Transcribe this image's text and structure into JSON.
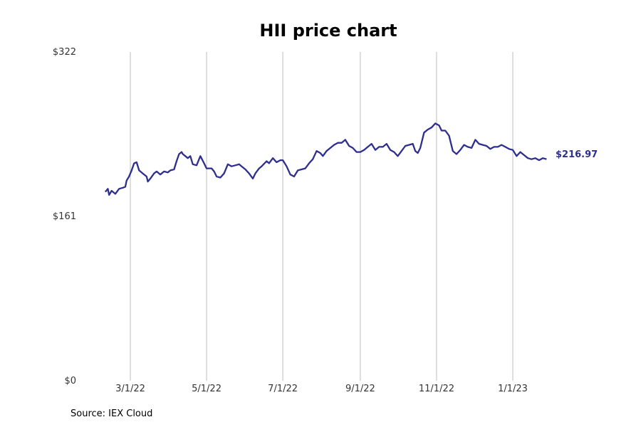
{
  "source_label": "Source: IEX Cloud",
  "colors": {
    "line": "#2e2e8f",
    "grid": "#bdbdbd"
  },
  "chart_data": {
    "type": "line",
    "title": "HII price chart",
    "xlabel": "",
    "ylabel": "",
    "ylim": [
      0,
      322
    ],
    "y_ticks": [
      {
        "value": 0,
        "label": "$0"
      },
      {
        "value": 161,
        "label": "$161"
      },
      {
        "value": 322,
        "label": "$322"
      }
    ],
    "x_ticks": [
      {
        "date": "2022-03-01",
        "label": "3/1/22"
      },
      {
        "date": "2022-05-01",
        "label": "5/1/22"
      },
      {
        "date": "2022-07-01",
        "label": "7/1/22"
      },
      {
        "date": "2022-09-01",
        "label": "9/1/22"
      },
      {
        "date": "2022-11-01",
        "label": "11/1/22"
      },
      {
        "date": "2023-01-01",
        "label": "1/1/23"
      }
    ],
    "grid": "vertical",
    "last_value_label": "$216.97",
    "series": [
      {
        "values": [
          [
            "2022-02-09",
            185
          ],
          [
            "2022-02-11",
            188
          ],
          [
            "2022-02-12",
            182
          ],
          [
            "2022-02-14",
            186
          ],
          [
            "2022-02-17",
            183
          ],
          [
            "2022-02-20",
            188
          ],
          [
            "2022-02-23",
            189
          ],
          [
            "2022-02-25",
            190
          ],
          [
            "2022-02-26",
            196
          ],
          [
            "2022-02-28",
            200
          ],
          [
            "2022-03-02",
            206
          ],
          [
            "2022-03-04",
            213
          ],
          [
            "2022-03-06",
            214
          ],
          [
            "2022-03-08",
            206
          ],
          [
            "2022-03-11",
            203
          ],
          [
            "2022-03-14",
            200
          ],
          [
            "2022-03-15",
            195
          ],
          [
            "2022-03-17",
            198
          ],
          [
            "2022-03-20",
            203
          ],
          [
            "2022-03-22",
            205
          ],
          [
            "2022-03-25",
            202
          ],
          [
            "2022-03-28",
            205
          ],
          [
            "2022-03-31",
            204
          ],
          [
            "2022-04-02",
            206
          ],
          [
            "2022-04-05",
            207
          ],
          [
            "2022-04-07",
            215
          ],
          [
            "2022-04-09",
            222
          ],
          [
            "2022-04-11",
            224
          ],
          [
            "2022-04-12",
            222
          ],
          [
            "2022-04-14",
            220
          ],
          [
            "2022-04-16",
            218
          ],
          [
            "2022-04-18",
            220
          ],
          [
            "2022-04-20",
            212
          ],
          [
            "2022-04-23",
            211
          ],
          [
            "2022-04-26",
            220
          ],
          [
            "2022-04-29",
            213
          ],
          [
            "2022-05-01",
            208
          ],
          [
            "2022-05-05",
            208
          ],
          [
            "2022-05-07",
            205
          ],
          [
            "2022-05-09",
            200
          ],
          [
            "2022-05-12",
            199
          ],
          [
            "2022-05-15",
            203
          ],
          [
            "2022-05-18",
            212
          ],
          [
            "2022-05-21",
            210
          ],
          [
            "2022-05-24",
            211
          ],
          [
            "2022-05-27",
            212
          ],
          [
            "2022-05-29",
            210
          ],
          [
            "2022-06-01",
            207
          ],
          [
            "2022-06-04",
            203
          ],
          [
            "2022-06-07",
            198
          ],
          [
            "2022-06-09",
            203
          ],
          [
            "2022-06-12",
            208
          ],
          [
            "2022-06-14",
            210
          ],
          [
            "2022-06-18",
            215
          ],
          [
            "2022-06-20",
            213
          ],
          [
            "2022-06-23",
            218
          ],
          [
            "2022-06-26",
            214
          ],
          [
            "2022-06-29",
            216
          ],
          [
            "2022-07-01",
            216
          ],
          [
            "2022-07-04",
            210
          ],
          [
            "2022-07-07",
            202
          ],
          [
            "2022-07-10",
            200
          ],
          [
            "2022-07-13",
            206
          ],
          [
            "2022-07-16",
            207
          ],
          [
            "2022-07-19",
            208
          ],
          [
            "2022-07-22",
            213
          ],
          [
            "2022-07-25",
            217
          ],
          [
            "2022-07-28",
            225
          ],
          [
            "2022-07-31",
            223
          ],
          [
            "2022-08-02",
            220
          ],
          [
            "2022-08-05",
            225
          ],
          [
            "2022-08-08",
            228
          ],
          [
            "2022-08-11",
            231
          ],
          [
            "2022-08-14",
            233
          ],
          [
            "2022-08-17",
            233
          ],
          [
            "2022-08-20",
            236
          ],
          [
            "2022-08-23",
            230
          ],
          [
            "2022-08-26",
            228
          ],
          [
            "2022-08-29",
            224
          ],
          [
            "2022-09-01",
            224
          ],
          [
            "2022-09-04",
            226
          ],
          [
            "2022-09-07",
            229
          ],
          [
            "2022-09-10",
            232
          ],
          [
            "2022-09-13",
            226
          ],
          [
            "2022-09-16",
            229
          ],
          [
            "2022-09-19",
            229
          ],
          [
            "2022-09-22",
            232
          ],
          [
            "2022-09-25",
            226
          ],
          [
            "2022-09-28",
            224
          ],
          [
            "2022-10-01",
            220
          ],
          [
            "2022-10-04",
            225
          ],
          [
            "2022-10-07",
            230
          ],
          [
            "2022-10-10",
            231
          ],
          [
            "2022-10-13",
            232
          ],
          [
            "2022-10-15",
            225
          ],
          [
            "2022-10-17",
            223
          ],
          [
            "2022-10-19",
            228
          ],
          [
            "2022-10-22",
            243
          ],
          [
            "2022-10-25",
            246
          ],
          [
            "2022-10-28",
            248
          ],
          [
            "2022-10-31",
            252
          ],
          [
            "2022-11-03",
            250
          ],
          [
            "2022-11-05",
            245
          ],
          [
            "2022-11-08",
            245
          ],
          [
            "2022-11-11",
            240
          ],
          [
            "2022-11-14",
            225
          ],
          [
            "2022-11-17",
            222
          ],
          [
            "2022-11-20",
            226
          ],
          [
            "2022-11-23",
            231
          ],
          [
            "2022-11-26",
            229
          ],
          [
            "2022-11-29",
            228
          ],
          [
            "2022-12-02",
            236
          ],
          [
            "2022-12-05",
            232
          ],
          [
            "2022-12-08",
            231
          ],
          [
            "2022-12-11",
            230
          ],
          [
            "2022-12-14",
            227
          ],
          [
            "2022-12-17",
            229
          ],
          [
            "2022-12-20",
            229
          ],
          [
            "2022-12-23",
            231
          ],
          [
            "2022-12-26",
            229
          ],
          [
            "2022-12-29",
            227
          ],
          [
            "2023-01-01",
            226
          ],
          [
            "2023-01-04",
            220
          ],
          [
            "2023-01-07",
            224
          ],
          [
            "2023-01-10",
            221
          ],
          [
            "2023-01-13",
            218
          ],
          [
            "2023-01-16",
            217
          ],
          [
            "2023-01-19",
            218
          ],
          [
            "2023-01-22",
            216
          ],
          [
            "2023-01-25",
            218
          ],
          [
            "2023-01-28",
            216.97
          ]
        ]
      }
    ]
  }
}
